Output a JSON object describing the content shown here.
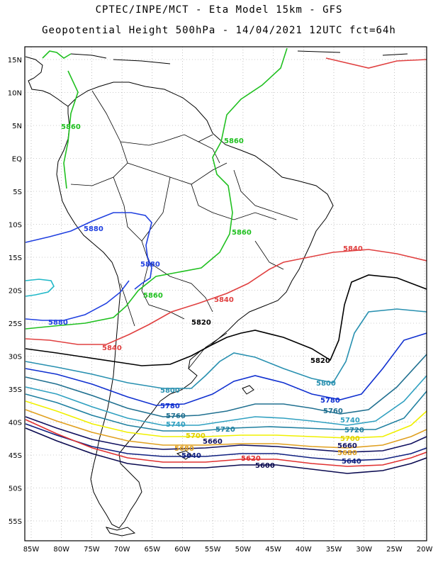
{
  "title": {
    "line1": "CPTEC/INPE/MCT -  Eta Model 15km - GFS",
    "line2": "Geopotential Height 500hPa - 14/04/2021 12UTC fct=64h"
  },
  "map": {
    "lon_ticks": [
      "85W",
      "80W",
      "75W",
      "70W",
      "65W",
      "60W",
      "55W",
      "50W",
      "45W",
      "40W",
      "35W",
      "30W",
      "25W",
      "20W"
    ],
    "lat_ticks": [
      "15N",
      "10N",
      "5N",
      "EQ",
      "5S",
      "10S",
      "15S",
      "20S",
      "25S",
      "30S",
      "35S",
      "40S",
      "45S",
      "50S",
      "55S"
    ],
    "lon_range": [
      -86,
      -20
    ],
    "lat_range": [
      16,
      -58
    ],
    "grid": "dotted"
  },
  "contours": [
    {
      "value": "5860",
      "color": "#20c020"
    },
    {
      "value": "5880",
      "color": "#2040e0"
    },
    {
      "value": "5840",
      "color": "#e04040"
    },
    {
      "value": "5820",
      "color": "#000000"
    },
    {
      "value": "5800",
      "color": "#2890b0"
    },
    {
      "value": "5780",
      "color": "#1030d0"
    },
    {
      "value": "5760",
      "color": "#207090"
    },
    {
      "value": "5740",
      "color": "#30a0c0"
    },
    {
      "value": "5720",
      "color": "#2080a0"
    },
    {
      "value": "5700",
      "color": "#f0f000"
    },
    {
      "value": "5680",
      "color": "#e0a020"
    },
    {
      "value": "5660",
      "color": "#101060"
    },
    {
      "value": "5640",
      "color": "#102080"
    },
    {
      "value": "5620",
      "color": "#e03030"
    },
    {
      "value": "5600",
      "color": "#0a0a50"
    }
  ]
}
